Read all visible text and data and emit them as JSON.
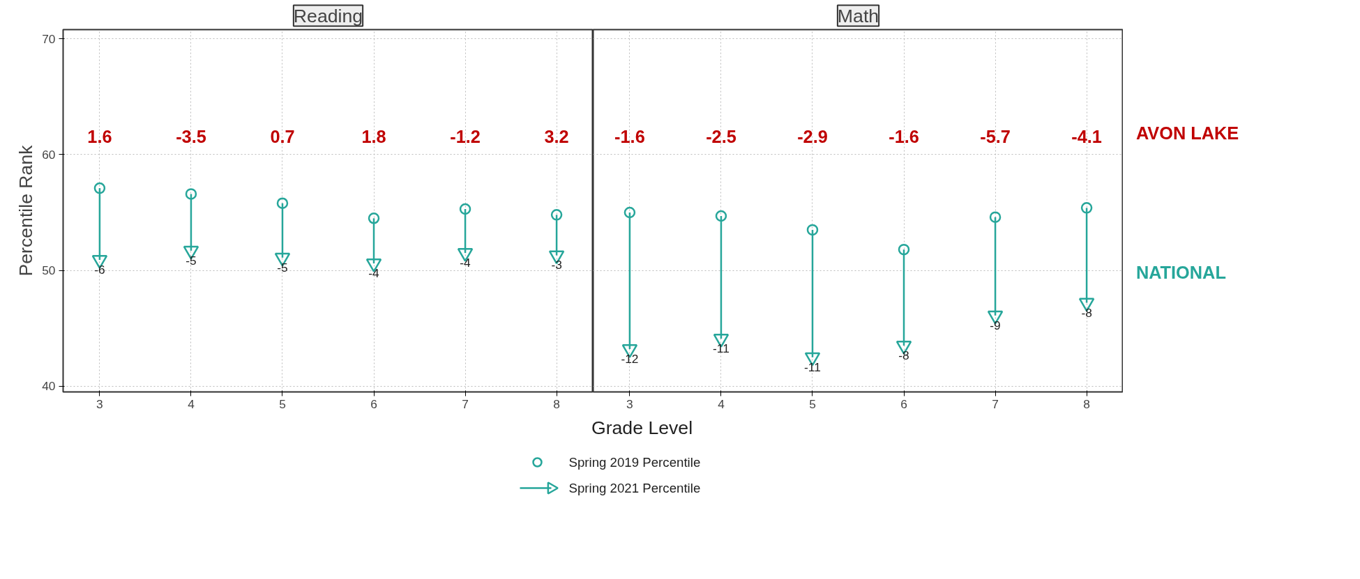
{
  "chart_data": [
    {
      "type": "scatter",
      "title": "Reading",
      "ylabel": "Percentile Rank",
      "xlabel": "Grade Level",
      "legend": "bottom",
      "categories": [
        "3",
        "4",
        "5",
        "6",
        "7",
        "8"
      ],
      "ylim": [
        39.5,
        70.8
      ],
      "yticks": [
        40,
        50,
        60,
        70
      ],
      "grid": true,
      "series": [
        {
          "name": "Spring 2019 Percentile",
          "color": "#26a69a",
          "marker": "circle",
          "values": [
            57.1,
            56.6,
            55.8,
            54.5,
            55.3,
            54.8
          ]
        },
        {
          "name": "Spring 2021 Percentile",
          "color": "#26a69a",
          "marker": "triangle",
          "values": [
            50.9,
            51.7,
            51.1,
            50.6,
            51.5,
            51.3
          ]
        }
      ],
      "annotations": [
        "1.6",
        "-3.5",
        "0.7",
        "1.8",
        "-1.2",
        "3.2",
        {
          "text": "-6",
          "x": "3",
          "y": 50.9
        },
        {
          "text": "-5",
          "x": "4",
          "y": 51.7
        },
        {
          "text": "-5",
          "x": "5",
          "y": 51.1
        },
        {
          "text": "-4",
          "x": "6",
          "y": 50.6
        },
        {
          "text": "-4",
          "x": "7",
          "y": 51.5
        },
        {
          "text": "-3",
          "x": "8",
          "y": 51.3
        }
      ]
    },
    {
      "type": "scatter",
      "title": "Math",
      "tick_labels": "x",
      "categories": [
        "3",
        "4",
        "5",
        "6",
        "7",
        "8"
      ],
      "ylim": [
        39.5,
        70.8
      ],
      "yticks": [
        40,
        50,
        60,
        70
      ],
      "grid": true,
      "series": [
        {
          "color": "#26a69a",
          "marker": "circle",
          "values": [
            55.0,
            54.7,
            53.5,
            51.8,
            54.6,
            55.4
          ]
        },
        {
          "color": "#26a69a",
          "marker": "triangle",
          "values": [
            43.2,
            44.1,
            42.5,
            43.5,
            46.1,
            47.2
          ]
        }
      ],
      "annotations": [
        "-1.6",
        "-2.5",
        "-2.9",
        "-1.6",
        "-5.7",
        "-4.1",
        "AVON LAKE",
        "NATIONAL",
        {
          "text": "-12",
          "x": "3",
          "y": 43.2
        },
        {
          "text": "-11",
          "x": "4",
          "y": 44.1
        },
        {
          "text": "-11",
          "x": "5",
          "y": 42.5
        },
        {
          "text": "-8",
          "x": "6",
          "y": 43.5
        },
        {
          "text": "-9",
          "x": "7",
          "y": 46.1
        },
        {
          "text": "-8",
          "x": "8",
          "y": 47.2
        }
      ]
    }
  ]
}
